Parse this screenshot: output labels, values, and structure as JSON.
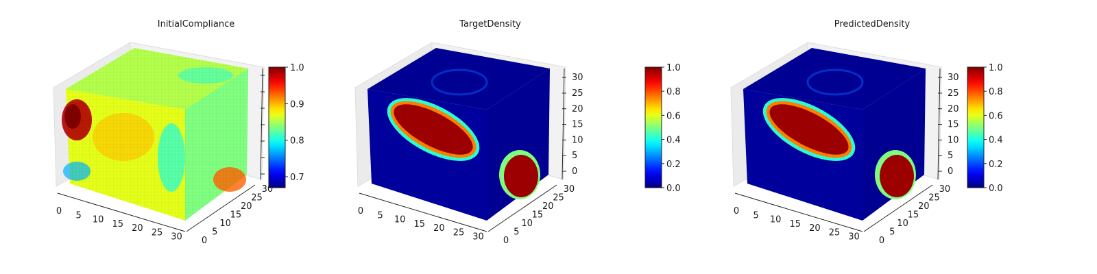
{
  "chart_data": [
    {
      "type": "heatmap",
      "title": "InitialCompliance",
      "plot": "3d-voxel-cube",
      "colormap": "jet",
      "grid": true,
      "axes": {
        "x": {
          "ticks": [
            0,
            5,
            10,
            15,
            20,
            25,
            30
          ],
          "lim": [
            0,
            32
          ]
        },
        "y": {
          "ticks": [
            0,
            5,
            10,
            15,
            20,
            25,
            30
          ],
          "lim": [
            0,
            32
          ]
        },
        "z": {
          "ticks": [],
          "lim": [
            0,
            32
          ]
        }
      },
      "colorbar": {
        "min": 0.67,
        "max": 1.0,
        "ticks": [
          0.7,
          0.8,
          0.9,
          1.0
        ]
      }
    },
    {
      "type": "heatmap",
      "title": "TargetDensity",
      "plot": "3d-voxel-cube",
      "colormap": "jet",
      "grid": true,
      "axes": {
        "x": {
          "ticks": [
            0,
            5,
            10,
            15,
            20,
            25,
            30
          ],
          "lim": [
            0,
            32
          ]
        },
        "y": {
          "ticks": [
            0,
            5,
            10,
            15,
            20,
            25,
            30
          ],
          "lim": [
            0,
            32
          ]
        },
        "z": {
          "ticks": [
            0,
            5,
            10,
            15,
            20,
            25,
            30
          ],
          "lim": [
            0,
            32
          ]
        }
      },
      "colorbar": {
        "min": 0.0,
        "max": 1.0,
        "ticks": [
          0.0,
          0.2,
          0.4,
          0.6,
          0.8,
          1.0
        ]
      }
    },
    {
      "type": "heatmap",
      "title": "PredictedDensity",
      "plot": "3d-voxel-cube",
      "colormap": "jet",
      "grid": true,
      "axes": {
        "x": {
          "ticks": [
            0,
            5,
            10,
            15,
            20,
            25,
            30
          ],
          "lim": [
            0,
            32
          ]
        },
        "y": {
          "ticks": [
            0,
            5,
            10,
            15,
            20,
            25,
            30
          ],
          "lim": [
            0,
            32
          ]
        },
        "z": {
          "ticks": [
            0,
            5,
            10,
            15,
            20,
            25,
            30
          ],
          "lim": [
            0,
            32
          ]
        }
      },
      "colorbar": {
        "min": 0.0,
        "max": 1.0,
        "ticks": [
          0.0,
          0.2,
          0.4,
          0.6,
          0.8,
          1.0
        ]
      }
    }
  ]
}
